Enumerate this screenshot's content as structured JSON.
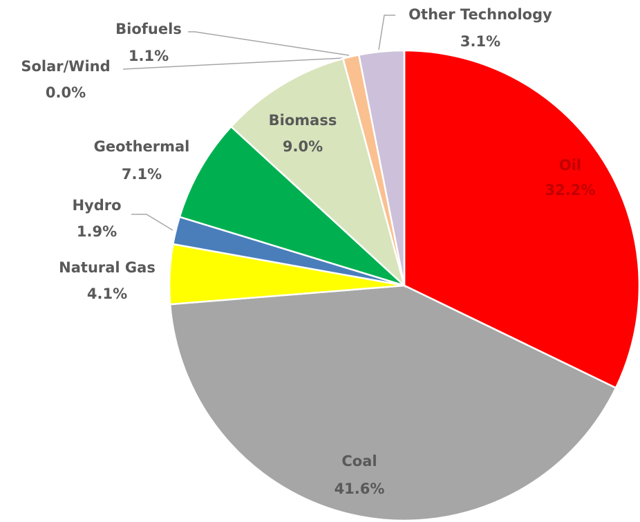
{
  "chart_data": {
    "type": "pie",
    "categories": [
      "Oil",
      "Coal",
      "Natural Gas",
      "Hydro",
      "Geothermal",
      "Biomass",
      "Solar/Wind",
      "Biofuels",
      "Other Technology"
    ],
    "values": [
      32.2,
      41.6,
      4.1,
      1.9,
      7.1,
      9.0,
      0.0,
      1.1,
      3.1
    ],
    "value_labels": [
      "32.2%",
      "41.6%",
      "4.1%",
      "1.9%",
      "7.1%",
      "9.0%",
      "0.0%",
      "1.1%",
      "3.1%"
    ],
    "colors": [
      "#ff0000",
      "#a6a6a6",
      "#ffff00",
      "#4a7ebb",
      "#00b050",
      "#d8e4bc",
      "#8eb4e3",
      "#fac090",
      "#ccc0da"
    ]
  }
}
